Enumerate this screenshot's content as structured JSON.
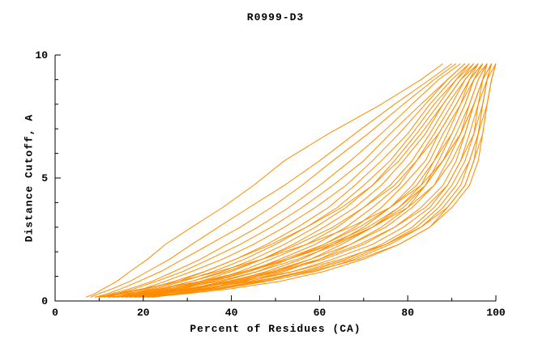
{
  "figure": {
    "background": "#ffffff",
    "axis_color": "#000000"
  },
  "chart_data": {
    "type": "line",
    "title": "R0999-D3",
    "xlabel": "Percent of Residues (CA)",
    "ylabel": "Distance Cutoff, A",
    "xlim": [
      0,
      100
    ],
    "ylim": [
      0,
      10
    ],
    "xticks": [
      0,
      20,
      40,
      60,
      80,
      100
    ],
    "yticks": [
      0,
      5,
      10
    ],
    "x_minor_step": 10,
    "y_minor_step": 1,
    "grid": false,
    "legend": "none",
    "line_color": "#FF8C00",
    "y_levels": [
      0.15,
      0.3,
      0.5,
      0.8,
      1.2,
      1.7,
      2.3,
      3.0,
      3.8,
      4.7,
      5.7,
      6.8,
      8.0,
      9.0,
      9.65
    ],
    "series_x": [
      [
        7,
        9,
        11,
        14,
        17,
        21,
        25,
        31,
        38,
        45,
        52,
        62,
        74,
        83,
        88
      ],
      [
        8,
        10,
        13,
        17,
        21,
        26,
        31,
        37,
        44,
        52,
        60,
        68,
        77,
        85,
        90
      ],
      [
        9,
        12,
        15,
        19,
        24,
        29,
        35,
        42,
        49,
        56,
        63,
        71,
        79,
        86,
        91
      ],
      [
        10,
        13,
        17,
        22,
        27,
        33,
        39,
        46,
        53,
        60,
        67,
        74,
        81,
        87,
        92
      ],
      [
        11,
        14,
        18,
        23,
        29,
        35,
        42,
        49,
        56,
        63,
        70,
        76,
        83,
        89,
        93
      ],
      [
        12,
        15,
        20,
        25,
        31,
        38,
        45,
        52,
        59,
        66,
        72,
        78,
        84,
        89,
        93
      ],
      [
        13,
        17,
        22,
        28,
        34,
        41,
        48,
        55,
        62,
        68,
        74,
        80,
        85,
        90,
        94
      ],
      [
        14,
        18,
        23,
        29,
        36,
        43,
        50,
        57,
        64,
        70,
        76,
        81,
        86,
        91,
        94
      ],
      [
        15,
        19,
        25,
        31,
        38,
        45,
        52,
        59,
        66,
        72,
        77,
        82,
        87,
        91,
        95
      ],
      [
        16,
        20,
        26,
        33,
        40,
        47,
        54,
        61,
        68,
        74,
        79,
        84,
        88,
        92,
        95
      ],
      [
        17,
        22,
        28,
        35,
        42,
        49,
        57,
        64,
        70,
        76,
        81,
        85,
        89,
        93,
        96
      ],
      [
        18,
        23,
        29,
        36,
        44,
        51,
        59,
        66,
        72,
        78,
        82,
        86,
        90,
        93,
        96
      ],
      [
        19,
        24,
        31,
        38,
        46,
        53,
        61,
        68,
        74,
        79,
        84,
        87,
        91,
        94,
        96
      ],
      [
        20,
        25,
        32,
        40,
        48,
        56,
        63,
        70,
        76,
        81,
        85,
        88,
        92,
        94,
        97
      ],
      [
        21,
        27,
        34,
        42,
        50,
        58,
        65,
        72,
        78,
        83,
        86,
        89,
        92,
        95,
        97
      ],
      [
        22,
        28,
        35,
        43,
        52,
        60,
        67,
        74,
        80,
        84,
        87,
        90,
        93,
        95,
        97
      ],
      [
        14,
        19,
        26,
        34,
        43,
        52,
        61,
        69,
        76,
        82,
        86,
        90,
        93,
        95,
        98
      ],
      [
        15,
        21,
        28,
        37,
        46,
        55,
        64,
        72,
        79,
        84,
        88,
        91,
        94,
        96,
        98
      ],
      [
        16,
        22,
        30,
        39,
        49,
        58,
        67,
        75,
        81,
        86,
        89,
        92,
        94,
        96,
        98
      ],
      [
        17,
        24,
        32,
        41,
        51,
        61,
        70,
        77,
        83,
        88,
        91,
        93,
        95,
        97,
        98
      ],
      [
        18,
        25,
        34,
        44,
        54,
        63,
        72,
        79,
        85,
        89,
        92,
        94,
        96,
        97,
        99
      ],
      [
        19,
        27,
        36,
        46,
        56,
        66,
        74,
        81,
        86,
        90,
        93,
        95,
        96,
        98,
        99
      ],
      [
        20,
        28,
        38,
        48,
        59,
        68,
        76,
        83,
        88,
        92,
        94,
        96,
        97,
        98,
        99
      ],
      [
        21,
        30,
        40,
        51,
        61,
        70,
        78,
        85,
        89,
        93,
        95,
        96,
        98,
        99,
        100
      ],
      [
        12,
        20,
        30,
        42,
        54,
        65,
        75,
        83,
        89,
        93,
        95,
        97,
        98,
        99,
        100
      ],
      [
        13,
        22,
        33,
        45,
        58,
        69,
        78,
        85,
        90,
        94,
        96,
        97,
        98,
        99,
        100
      ],
      [
        10,
        16,
        24,
        33,
        43,
        53,
        63,
        72,
        80,
        86,
        90,
        93,
        95,
        97,
        99
      ],
      [
        9,
        14,
        20,
        28,
        37,
        47,
        57,
        67,
        76,
        83,
        88,
        92,
        95,
        97,
        98
      ],
      [
        11,
        15,
        21,
        27,
        34,
        41,
        49,
        57,
        65,
        72,
        78,
        83,
        88,
        92,
        96
      ],
      [
        13,
        18,
        24,
        31,
        39,
        47,
        55,
        63,
        70,
        77,
        82,
        87,
        91,
        94,
        97
      ],
      [
        16,
        21,
        27,
        35,
        44,
        53,
        62,
        71,
        78,
        84,
        88,
        92,
        95,
        97,
        99
      ],
      [
        18,
        24,
        31,
        40,
        50,
        60,
        69,
        77,
        84,
        89,
        92,
        95,
        97,
        98,
        100
      ],
      [
        22,
        29,
        37,
        47,
        57,
        67,
        75,
        82,
        87,
        91,
        94,
        96,
        97,
        98,
        99
      ]
    ]
  }
}
